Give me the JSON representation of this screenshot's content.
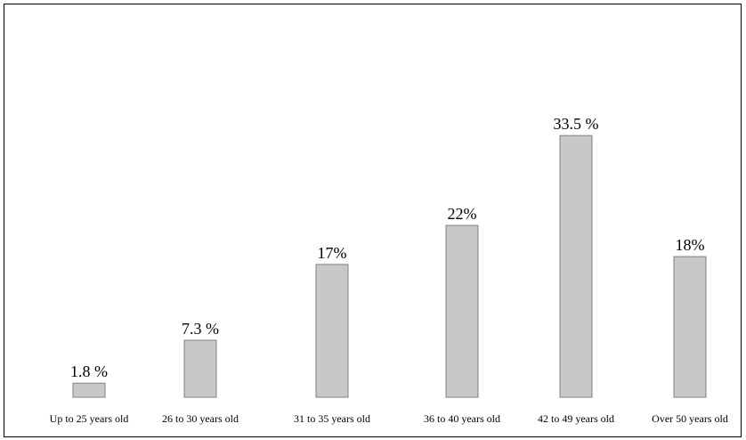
{
  "chart_data": {
    "type": "bar",
    "categories": [
      "Up to 25 years old",
      "26 to 30 years old",
      "31 to 35 years old",
      "36 to 40 years old",
      "42 to 49 years old",
      "Over 50 years old"
    ],
    "values": [
      1.8,
      7.3,
      17,
      22,
      33.5,
      18
    ],
    "value_labels": [
      "1.8 %",
      "7.3 %",
      "17%",
      "22%",
      "33.5 %",
      "18%"
    ],
    "title": "",
    "xlabel": "",
    "ylabel": "",
    "grid": false,
    "legend": "none",
    "bar_color": "#c8c8c8",
    "bar_edge_color": "#808080"
  }
}
